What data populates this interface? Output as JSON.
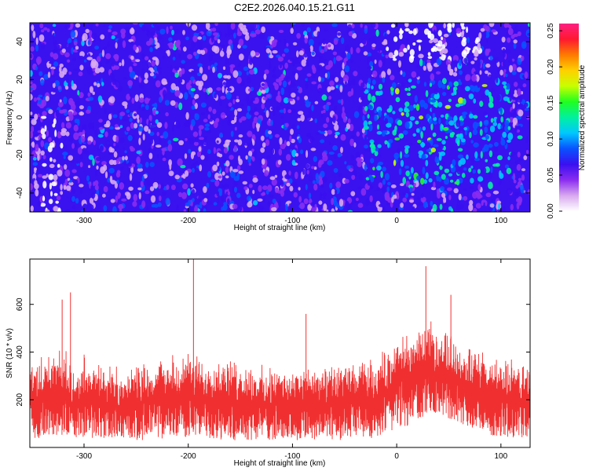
{
  "title": "C2E2.2026.040.15.21.G11",
  "chart_data": [
    {
      "type": "heatmap",
      "xlabel": "Height of straight line (km)",
      "ylabel": "Frequency (Hz)",
      "xlim": [
        -352,
        128
      ],
      "ylim": [
        -50,
        50
      ],
      "x_ticks": [
        -300,
        -200,
        -100,
        0,
        100
      ],
      "y_ticks": [
        -40,
        -20,
        0,
        20,
        40
      ],
      "colorbar": {
        "label": "Normalized spectral amplitude",
        "range": [
          0,
          0.26
        ],
        "ticks": [
          "0.00",
          "0.05",
          "0.10",
          "0.15",
          "0.20",
          "0.25"
        ],
        "colors": [
          "#ffffff",
          "#d8a8f0",
          "#8b2cf0",
          "#3a10f0",
          "#0a52ff",
          "#00c8ff",
          "#00f0a0",
          "#20ff20",
          "#c8ff00",
          "#ffd000",
          "#ff7a00",
          "#ff1830",
          "#ff2080"
        ]
      },
      "regions": [
        {
          "x": [
            -350,
            128
          ],
          "y": [
            -50,
            50
          ],
          "level": 0.05
        },
        {
          "x": [
            -30,
            110
          ],
          "y": [
            -35,
            20
          ],
          "level": 0.1
        },
        {
          "x": [
            -10,
            80
          ],
          "y": [
            30,
            50
          ],
          "level": 0.0
        },
        {
          "x": [
            -340,
            -320
          ],
          "y": [
            -50,
            0
          ],
          "level": 0.01
        }
      ]
    },
    {
      "type": "line",
      "xlabel": "Height of straight line (km)",
      "ylabel": "SNR (10 * v/v)",
      "xlim": [
        -352,
        128
      ],
      "ylim": [
        0,
        790
      ],
      "x_ticks": [
        -300,
        -200,
        -100,
        0,
        100
      ],
      "y_ticks": [
        200,
        400,
        600
      ],
      "series_color": "#f03030",
      "envelope": {
        "x": [
          -352,
          -340,
          -320,
          -310,
          -300,
          -290,
          -280,
          -260,
          -240,
          -220,
          -200,
          -180,
          -160,
          -140,
          -120,
          -100,
          -80,
          -60,
          -40,
          -20,
          0,
          20,
          35,
          50,
          70,
          90,
          110,
          128
        ],
        "center": [
          190,
          200,
          230,
          160,
          205,
          200,
          185,
          165,
          200,
          195,
          210,
          205,
          195,
          185,
          180,
          180,
          175,
          185,
          190,
          200,
          270,
          310,
          320,
          300,
          240,
          210,
          200,
          195
        ],
        "high": [
          340,
          370,
          420,
          300,
          380,
          360,
          340,
          320,
          350,
          360,
          380,
          370,
          350,
          330,
          320,
          320,
          320,
          330,
          340,
          360,
          440,
          480,
          500,
          470,
          410,
          370,
          350,
          340
        ],
        "low": [
          40,
          40,
          50,
          40,
          40,
          35,
          30,
          30,
          30,
          35,
          40,
          35,
          30,
          30,
          30,
          30,
          30,
          30,
          35,
          40,
          70,
          110,
          150,
          120,
          80,
          50,
          40,
          40
        ]
      },
      "spikes": [
        {
          "x": -321,
          "y": 620
        },
        {
          "x": -313,
          "y": 650
        },
        {
          "x": -195,
          "y": 790
        },
        {
          "x": -87,
          "y": 560
        },
        {
          "x": 28,
          "y": 760
        },
        {
          "x": 52,
          "y": 640
        }
      ]
    }
  ]
}
